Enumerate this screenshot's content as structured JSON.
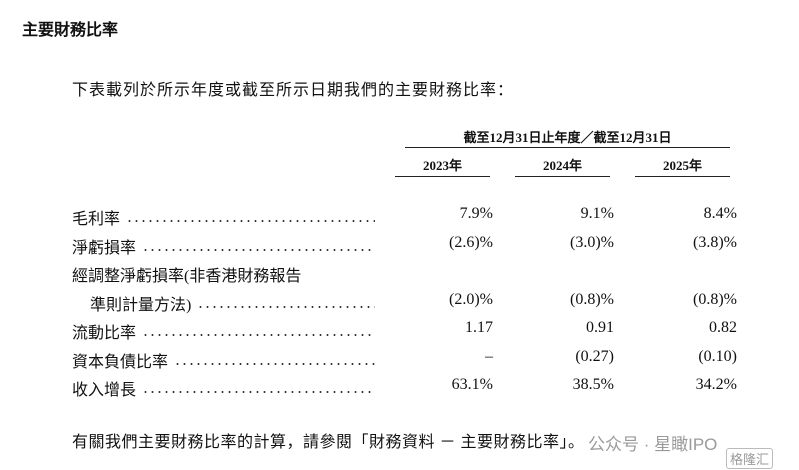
{
  "heading": "主要財務比率",
  "intro": "下表載列於所示年度或截至所示日期我們的主要財務比率：",
  "table": {
    "group_header": "截至12月31日止年度／截至12月31日",
    "columns": [
      "2023年",
      "2024年",
      "2025年"
    ],
    "rows": [
      {
        "label_lines": [
          "毛利率"
        ],
        "values": [
          "7.9%",
          "9.1%",
          "8.4%"
        ]
      },
      {
        "label_lines": [
          "淨虧損率"
        ],
        "values": [
          "(2.6)%",
          "(3.0)%",
          "(3.8)%"
        ]
      },
      {
        "label_lines": [
          "經調整淨虧損率(非香港財務報告",
          "準則計量方法)"
        ],
        "values": [
          "(2.0)%",
          "(0.8)%",
          "(0.8)%"
        ]
      },
      {
        "label_lines": [
          "流動比率"
        ],
        "values": [
          "1.17",
          "0.91",
          "0.82"
        ]
      },
      {
        "label_lines": [
          "資本負債比率"
        ],
        "values": [
          "–",
          "(0.27)",
          "(0.10)"
        ]
      },
      {
        "label_lines": [
          "收入增長"
        ],
        "values": [
          "63.1%",
          "38.5%",
          "34.2%"
        ]
      }
    ]
  },
  "footer": "有關我們主要財務比率的計算，請參閱「財務資料 － 主要財務比率」。",
  "watermark": {
    "account": "公众号 · 星瞰IPO",
    "logo": "格隆汇"
  }
}
